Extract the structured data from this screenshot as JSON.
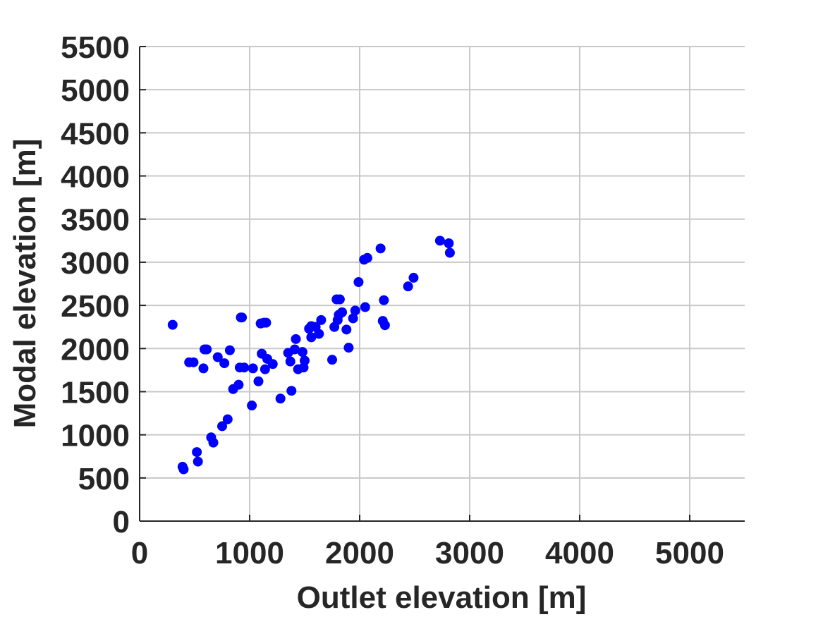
{
  "chart_data": {
    "type": "scatter",
    "title": "",
    "xlabel": "Outlet elevation [m]",
    "ylabel": "Modal elevation [m]",
    "xlim": [
      0,
      5500
    ],
    "ylim": [
      0,
      5500
    ],
    "xticks": [
      0,
      1000,
      2000,
      3000,
      4000,
      5000
    ],
    "yticks": [
      0,
      500,
      1000,
      1500,
      2000,
      2500,
      3000,
      3500,
      4000,
      4500,
      5000,
      5500
    ],
    "grid": true,
    "marker_color": "#0000ff",
    "series": [
      {
        "points": [
          [
            300,
            2275
          ],
          [
            390,
            630
          ],
          [
            400,
            600
          ],
          [
            450,
            1840
          ],
          [
            490,
            1840
          ],
          [
            520,
            800
          ],
          [
            530,
            690
          ],
          [
            580,
            1770
          ],
          [
            590,
            1990
          ],
          [
            610,
            1990
          ],
          [
            650,
            970
          ],
          [
            670,
            910
          ],
          [
            710,
            1900
          ],
          [
            750,
            1100
          ],
          [
            770,
            1830
          ],
          [
            800,
            1180
          ],
          [
            820,
            1980
          ],
          [
            850,
            1530
          ],
          [
            900,
            1580
          ],
          [
            910,
            1780
          ],
          [
            920,
            2360
          ],
          [
            930,
            2360
          ],
          [
            950,
            1780
          ],
          [
            1020,
            1340
          ],
          [
            1030,
            1770
          ],
          [
            1080,
            1620
          ],
          [
            1100,
            2290
          ],
          [
            1110,
            1940
          ],
          [
            1130,
            2300
          ],
          [
            1140,
            1760
          ],
          [
            1150,
            2300
          ],
          [
            1160,
            1880
          ],
          [
            1210,
            1820
          ],
          [
            1280,
            1420
          ],
          [
            1350,
            1950
          ],
          [
            1370,
            1850
          ],
          [
            1380,
            1510
          ],
          [
            1410,
            1990
          ],
          [
            1420,
            2110
          ],
          [
            1440,
            1760
          ],
          [
            1480,
            1960
          ],
          [
            1490,
            1780
          ],
          [
            1500,
            1860
          ],
          [
            1540,
            2230
          ],
          [
            1560,
            2260
          ],
          [
            1560,
            2130
          ],
          [
            1600,
            2250
          ],
          [
            1630,
            2170
          ],
          [
            1650,
            2330
          ],
          [
            1750,
            1870
          ],
          [
            1770,
            2250
          ],
          [
            1790,
            2570
          ],
          [
            1800,
            2330
          ],
          [
            1810,
            2390
          ],
          [
            1820,
            2570
          ],
          [
            1840,
            2420
          ],
          [
            1880,
            2220
          ],
          [
            1900,
            2010
          ],
          [
            1940,
            2350
          ],
          [
            1960,
            2440
          ],
          [
            1990,
            2770
          ],
          [
            2040,
            3030
          ],
          [
            2050,
            2480
          ],
          [
            2070,
            3050
          ],
          [
            2190,
            3160
          ],
          [
            2210,
            2320
          ],
          [
            2220,
            2560
          ],
          [
            2230,
            2270
          ],
          [
            2440,
            2720
          ],
          [
            2490,
            2820
          ],
          [
            2730,
            3250
          ],
          [
            2810,
            3220
          ],
          [
            2820,
            3110
          ]
        ]
      }
    ]
  }
}
